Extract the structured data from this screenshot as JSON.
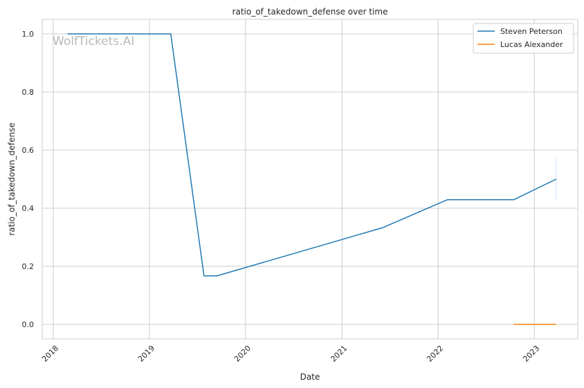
{
  "chart_data": {
    "type": "line",
    "title": "ratio_of_takedown_defense over time",
    "xlabel": "Date",
    "ylabel": "ratio_of_takedown_defense",
    "x_tick_labels": [
      "2018",
      "2019",
      "2020",
      "2021",
      "2022",
      "2023"
    ],
    "y_tick_labels": [
      "0.0",
      "0.2",
      "0.4",
      "0.6",
      "0.8",
      "1.0"
    ],
    "y_ticks": [
      0.0,
      0.2,
      0.4,
      0.6,
      0.8,
      1.0
    ],
    "xlim": [
      "2017-11-20",
      "2023-06-15"
    ],
    "ylim": [
      -0.05,
      1.05
    ],
    "grid": true,
    "legend_position": "top-right",
    "watermark": "WolfTickets.AI",
    "series": [
      {
        "name": "Steven Peterson",
        "color": "#1f77b4",
        "points": [
          {
            "x": "2018-02-24",
            "y": 1.0
          },
          {
            "x": "2019-03-23",
            "y": 1.0
          },
          {
            "x": "2019-07-27",
            "y": 0.167
          },
          {
            "x": "2019-09-14",
            "y": 0.167
          },
          {
            "x": "2021-06-05",
            "y": 0.333
          },
          {
            "x": "2022-02-05",
            "y": 0.429
          },
          {
            "x": "2022-10-15",
            "y": 0.429
          },
          {
            "x": "2023-03-25",
            "y": 0.5
          }
        ],
        "error_band": {
          "x": "2023-03-25",
          "low": 0.43,
          "high": 0.57
        }
      },
      {
        "name": "Lucas Alexander",
        "color": "#ff7f0e",
        "points": [
          {
            "x": "2022-10-15",
            "y": 0.0
          },
          {
            "x": "2023-03-25",
            "y": 0.0
          }
        ]
      }
    ]
  }
}
